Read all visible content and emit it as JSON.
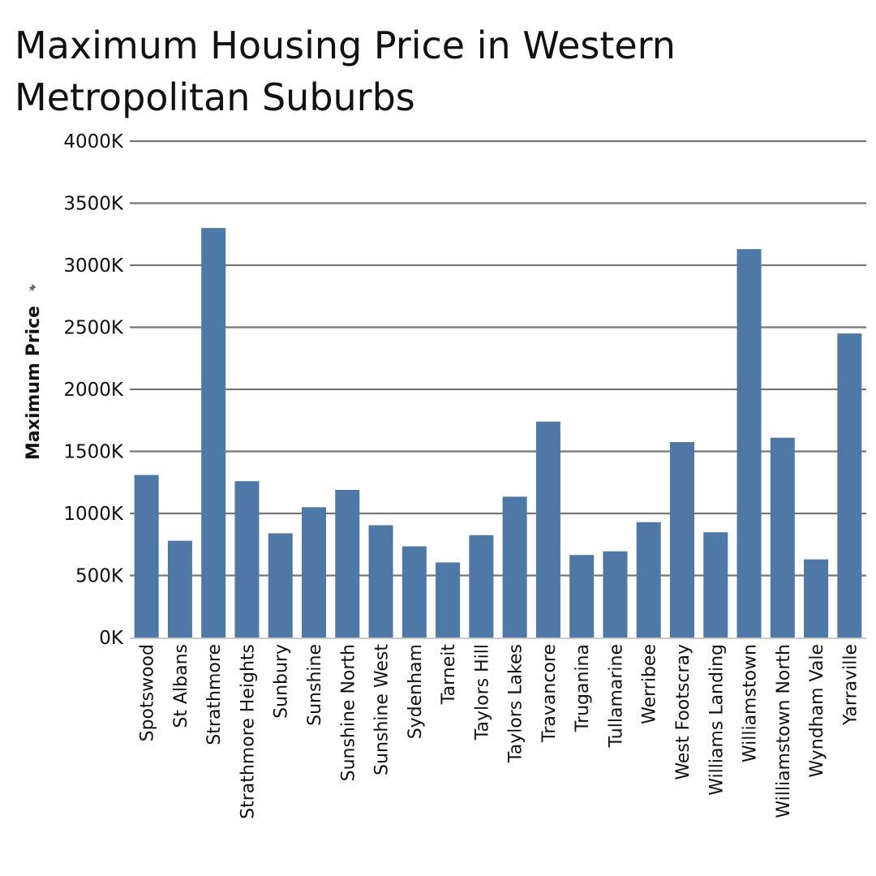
{
  "chart_data": {
    "type": "bar",
    "title": "Maximum Housing Price in Western Metropolitan Suburbs",
    "xlabel": "",
    "ylabel": "Maximum Price",
    "ylabel_icon": "pin-icon",
    "ylim": [
      0,
      4000000
    ],
    "y_ticks": [
      {
        "value": 0,
        "label": "0K"
      },
      {
        "value": 500000,
        "label": "500K"
      },
      {
        "value": 1000000,
        "label": "1000K"
      },
      {
        "value": 1500000,
        "label": "1500K"
      },
      {
        "value": 2000000,
        "label": "2000K"
      },
      {
        "value": 2500000,
        "label": "2500K"
      },
      {
        "value": 3000000,
        "label": "3000K"
      },
      {
        "value": 3500000,
        "label": "3500K"
      },
      {
        "value": 4000000,
        "label": "4000K"
      }
    ],
    "grid": true,
    "bar_color": "#4e79a7",
    "grid_color": "#777777",
    "categories": [
      "Spotswood",
      "St Albans",
      "Strathmore",
      "Strathmore Heights",
      "Sunbury",
      "Sunshine",
      "Sunshine North",
      "Sunshine West",
      "Sydenham",
      "Tarneit",
      "Taylors Hill",
      "Taylors Lakes",
      "Travancore",
      "Truganina",
      "Tullamarine",
      "Werribee",
      "West Footscray",
      "Williams Landing",
      "Williamstown",
      "Williamstown North",
      "Wyndham Vale",
      "Yarraville"
    ],
    "values": [
      1310000,
      780000,
      3300000,
      1260000,
      840000,
      1050000,
      1190000,
      905000,
      735000,
      605000,
      825000,
      1135000,
      1740000,
      665000,
      695000,
      930000,
      1575000,
      848000,
      3130000,
      1610000,
      630000,
      2450000
    ]
  }
}
